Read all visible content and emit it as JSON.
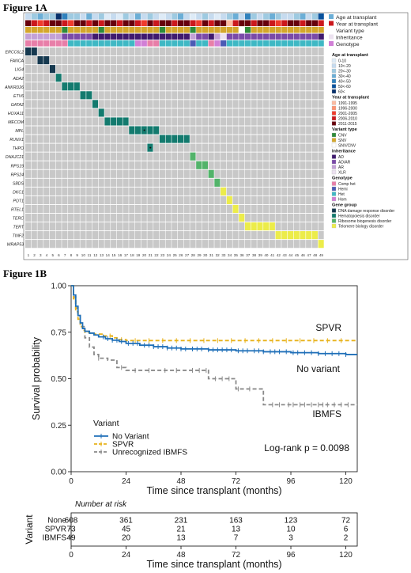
{
  "fig1a": {
    "title": "Figure 1A",
    "header_tracks": [
      "Age at transplant",
      "Year at transplant",
      "Variant type",
      "Inheritance",
      "Genotype"
    ],
    "genes": [
      "ERCC6L2",
      "FANCA",
      "LIG4",
      "ADA2",
      "ANKRD26",
      "ETV6",
      "GATA2",
      "HOXA11",
      "MECOM",
      "MPL",
      "RUNX1",
      "THPO",
      "DNAJC21",
      "RPS19",
      "RPS24",
      "SBDS",
      "DKC1",
      "POT1",
      "RTEL1",
      "TERC",
      "TERT",
      "TINF2",
      "WRAP53"
    ],
    "columns": [
      "1",
      "2",
      "3",
      "4",
      "5",
      "6",
      "7",
      "8",
      "9",
      "10",
      "11",
      "12",
      "13",
      "14",
      "15",
      "16",
      "17",
      "18",
      "19",
      "20",
      "21",
      "22",
      "23",
      "24",
      "25",
      "26",
      "27",
      "28",
      "29",
      "30",
      "31",
      "32",
      "33",
      "34",
      "35",
      "36",
      "37",
      "38",
      "39",
      "40",
      "41",
      "42",
      "43",
      "44",
      "45",
      "46",
      "47",
      "48",
      "49"
    ],
    "legend": [
      {
        "title": "Age at transplant",
        "items": [
          {
            "label": "0-10",
            "color": "#deebf7"
          },
          {
            "label": "10<-20",
            "color": "#c6dbef"
          },
          {
            "label": "20<-30",
            "color": "#9ecae1"
          },
          {
            "label": "30<-40",
            "color": "#6baed6"
          },
          {
            "label": "40<-50",
            "color": "#3182bd"
          },
          {
            "label": "50<-60",
            "color": "#08519c"
          },
          {
            "label": "60<",
            "color": "#08306b"
          }
        ]
      },
      {
        "title": "Year at transplant",
        "items": [
          {
            "label": "1991-1995",
            "color": "#fcbba1"
          },
          {
            "label": "1996-2000",
            "color": "#fc9272"
          },
          {
            "label": "2001-2005",
            "color": "#ef3b2c"
          },
          {
            "label": "2006-2010",
            "color": "#cb181d"
          },
          {
            "label": "2011-2015",
            "color": "#67000d"
          }
        ]
      },
      {
        "title": "Variant type",
        "items": [
          {
            "label": "CNV",
            "color": "#2e8b3a"
          },
          {
            "label": "SNV",
            "color": "#d4a72c"
          },
          {
            "label": "SNV/CNV",
            "color": "#ffffff"
          }
        ]
      },
      {
        "title": "Inheritance",
        "items": [
          {
            "label": "AD",
            "color": "#3f1a6e"
          },
          {
            "label": "AD/AR",
            "color": "#7a4aa8"
          },
          {
            "label": "AR",
            "color": "#c3a1d6"
          },
          {
            "label": "XLR",
            "color": "#ece2f0"
          }
        ]
      },
      {
        "title": "Genotype",
        "items": [
          {
            "label": "Comp het",
            "color": "#e87ea8"
          },
          {
            "label": "Hemi",
            "color": "#4a5bb5"
          },
          {
            "label": "Het",
            "color": "#3fb8c4"
          },
          {
            "label": "Hom",
            "color": "#d17fd6"
          }
        ]
      },
      {
        "title": "Gene group",
        "items": [
          {
            "label": "DNA damage response disorder",
            "color": "#16394f"
          },
          {
            "label": "Hematopoiesis disorder",
            "color": "#137a6e"
          },
          {
            "label": "Ribosome biogenesis disorder",
            "color": "#52b36a"
          },
          {
            "label": "Telomere biology disorder",
            "color": "#ecec4a"
          }
        ]
      }
    ],
    "gene_assignments": [
      {
        "gene": "ERCC6L2",
        "cols": [
          1,
          2
        ],
        "group": "DNA damage response disorder"
      },
      {
        "gene": "FANCA",
        "cols": [
          3,
          4
        ],
        "group": "DNA damage response disorder"
      },
      {
        "gene": "LIG4",
        "cols": [
          5
        ],
        "group": "DNA damage response disorder"
      },
      {
        "gene": "ADA2",
        "cols": [
          6
        ],
        "group": "Hematopoiesis disorder"
      },
      {
        "gene": "ANKRD26",
        "cols": [
          7,
          8,
          9
        ],
        "group": "Hematopoiesis disorder"
      },
      {
        "gene": "ETV6",
        "cols": [
          10,
          11
        ],
        "group": "Hematopoiesis disorder"
      },
      {
        "gene": "GATA2",
        "cols": [
          12
        ],
        "group": "Hematopoiesis disorder"
      },
      {
        "gene": "HOXA11",
        "cols": [
          13
        ],
        "group": "Hematopoiesis disorder"
      },
      {
        "gene": "MECOM",
        "cols": [
          14,
          15,
          16,
          17
        ],
        "group": "Hematopoiesis disorder"
      },
      {
        "gene": "MPL",
        "cols": [
          18,
          19,
          20,
          21,
          22
        ],
        "group": "Hematopoiesis disorder"
      },
      {
        "gene": "RUNX1",
        "cols": [
          23,
          24,
          25,
          26,
          27
        ],
        "group": "Hematopoiesis disorder"
      },
      {
        "gene": "THPO",
        "cols": [
          21
        ],
        "group": "Hematopoiesis disorder"
      },
      {
        "gene": "DNAJC21",
        "cols": [
          28
        ],
        "group": "Ribosome biogenesis disorder"
      },
      {
        "gene": "RPS19",
        "cols": [
          29,
          30
        ],
        "group": "Ribosome biogenesis disorder"
      },
      {
        "gene": "RPS24",
        "cols": [
          31
        ],
        "group": "Ribosome biogenesis disorder"
      },
      {
        "gene": "SBDS",
        "cols": [
          32
        ],
        "group": "Ribosome biogenesis disorder"
      },
      {
        "gene": "DKC1",
        "cols": [
          33
        ],
        "group": "Telomere biology disorder"
      },
      {
        "gene": "POT1",
        "cols": [
          34
        ],
        "group": "Telomere biology disorder"
      },
      {
        "gene": "RTEL1",
        "cols": [
          35
        ],
        "group": "Telomere biology disorder"
      },
      {
        "gene": "TERC",
        "cols": [
          36
        ],
        "group": "Telomere biology disorder"
      },
      {
        "gene": "TERT",
        "cols": [
          37,
          38,
          39,
          40,
          41
        ],
        "group": "Telomere biology disorder"
      },
      {
        "gene": "TINF2",
        "cols": [
          42,
          43,
          44,
          45,
          46,
          47,
          48
        ],
        "group": "Telomere biology disorder"
      },
      {
        "gene": "WRAP53",
        "cols": [
          49
        ],
        "group": "Telomere biology disorder"
      }
    ],
    "starred_cells": [
      {
        "gene": "MPL",
        "col": 20
      },
      {
        "gene": "THPO",
        "col": 21
      }
    ]
  },
  "fig1b": {
    "title": "Figure 1B"
  },
  "chart_data": {
    "type": "line",
    "title": "",
    "xlabel": "Time since transplant (months)",
    "ylabel": "Survival probability",
    "xlim": [
      0,
      125
    ],
    "ylim": [
      0,
      1
    ],
    "xticks": [
      "0",
      "24",
      "48",
      "72",
      "96",
      "120"
    ],
    "yticks": [
      "0.00",
      "0.25",
      "0.50",
      "0.75",
      "1.00"
    ],
    "legend_title": "Variant",
    "legend_position": "bottom-left",
    "series": [
      {
        "name": "No Variant",
        "line_label": "No variant",
        "color": "#1f6fb8",
        "dash": "solid",
        "x": [
          0,
          1,
          2,
          3,
          4,
          5,
          6,
          8,
          10,
          12,
          15,
          18,
          21,
          24,
          30,
          36,
          42,
          48,
          60,
          72,
          84,
          96,
          108,
          120,
          125
        ],
        "y": [
          1.0,
          0.95,
          0.89,
          0.84,
          0.8,
          0.77,
          0.755,
          0.745,
          0.735,
          0.725,
          0.715,
          0.707,
          0.7,
          0.69,
          0.68,
          0.672,
          0.665,
          0.66,
          0.655,
          0.65,
          0.645,
          0.64,
          0.635,
          0.63,
          0.63
        ]
      },
      {
        "name": "SPVR",
        "line_label": "SPVR",
        "color": "#e8b21b",
        "dash": "dashed",
        "x": [
          0,
          1,
          2,
          3,
          4,
          5,
          6,
          8,
          10,
          14,
          18,
          20,
          24,
          125
        ],
        "y": [
          1.0,
          0.93,
          0.86,
          0.82,
          0.78,
          0.76,
          0.75,
          0.745,
          0.74,
          0.73,
          0.72,
          0.71,
          0.705,
          0.705
        ]
      },
      {
        "name": "Unrecognized IBMFS",
        "line_label": "IBMFS",
        "color": "#8a8a8a",
        "dash": "dashed",
        "x": [
          0,
          1,
          2,
          3,
          4,
          6,
          8,
          10,
          12,
          16,
          20,
          24,
          30,
          36,
          48,
          60,
          66,
          72,
          84,
          96,
          108,
          120,
          125
        ],
        "y": [
          1.0,
          0.94,
          0.88,
          0.84,
          0.78,
          0.72,
          0.67,
          0.63,
          0.61,
          0.6,
          0.56,
          0.545,
          0.545,
          0.545,
          0.545,
          0.5,
          0.5,
          0.445,
          0.36,
          0.36,
          0.36,
          0.36,
          0.36
        ]
      }
    ],
    "censor_marks": {
      "No Variant": [
        14,
        16,
        18,
        20,
        22,
        25,
        27,
        29,
        32,
        34,
        36,
        38,
        40,
        42,
        44,
        46,
        48,
        50,
        53,
        55,
        57,
        60,
        62,
        64,
        66,
        68,
        70,
        73,
        75,
        77,
        80,
        82,
        84,
        87,
        89,
        91,
        94,
        97,
        99,
        102,
        105,
        108,
        111,
        114,
        117,
        120
      ],
      "SPVR": [
        17,
        22,
        28,
        34,
        40,
        46,
        52,
        58,
        64,
        70,
        76,
        82,
        88,
        94,
        100,
        106,
        112,
        118
      ],
      "Unrecognized IBMFS": [
        12,
        22,
        28,
        34,
        41,
        46,
        53,
        56,
        59,
        63,
        66,
        69,
        73,
        78,
        88,
        91,
        95,
        97,
        100,
        102,
        105,
        108,
        110,
        112,
        115,
        118,
        121
      ]
    },
    "annotation": "Log-rank   p = 0.0098",
    "risk_table": {
      "title": "Number at risk",
      "group_axis_label": "Variant",
      "xlabel": "Time since transplant (months)",
      "times": [
        "0",
        "24",
        "48",
        "72",
        "96",
        "120"
      ],
      "rows": [
        {
          "label": "None",
          "values": [
            "608",
            "361",
            "231",
            "163",
            "123",
            "72"
          ]
        },
        {
          "label": "SPVR",
          "values": [
            "73",
            "45",
            "21",
            "13",
            "10",
            "6"
          ]
        },
        {
          "label": "IBMFS",
          "values": [
            "49",
            "20",
            "13",
            "7",
            "3",
            "2"
          ]
        }
      ]
    }
  }
}
